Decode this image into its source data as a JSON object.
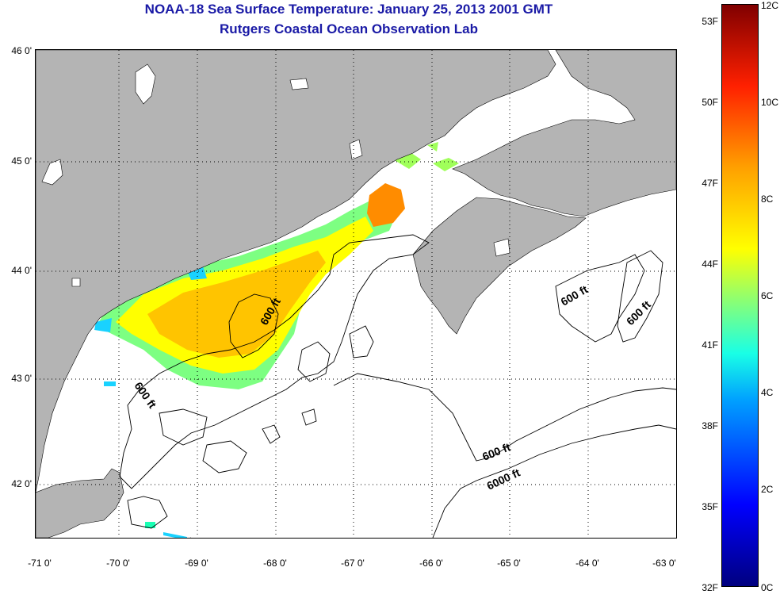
{
  "header": {
    "title": "NOAA-18 Sea Surface Temperature:  January 25, 2013 2001 GMT",
    "subtitle": "Rutgers Coastal Ocean Observation Lab"
  },
  "map": {
    "lat_labels": [
      "46 0'",
      "45 0'",
      "44 0'",
      "43 0'",
      "42 0'"
    ],
    "lon_labels": [
      "-71 0'",
      "-70 0'",
      "-69 0'",
      "-68 0'",
      "-67 0'",
      "-66 0'",
      "-65 0'",
      "-64 0'",
      "-63 0'"
    ],
    "contour_labels": [
      "600 ft",
      "600 ft",
      "600 ft",
      "600 ft",
      "600 ft",
      "6000 ft"
    ],
    "colors": {
      "land": "#b4b4b4",
      "water": "#ffffff",
      "title": "#1a1aa6"
    }
  },
  "colorbar": {
    "fahrenheit_labels": [
      "53F",
      "50F",
      "47F",
      "44F",
      "41F",
      "38F",
      "35F",
      "32F"
    ],
    "celsius_labels": [
      "12C",
      "10C",
      "8C",
      "6C",
      "4C",
      "2C",
      "0C"
    ]
  }
}
